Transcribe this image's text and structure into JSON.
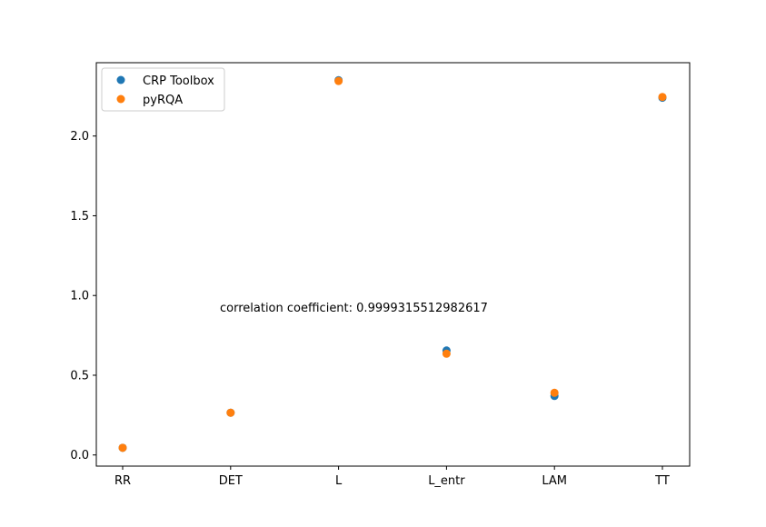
{
  "chart_data": {
    "type": "scatter",
    "title": "",
    "xlabel": "",
    "ylabel": "",
    "categories": [
      "RR",
      "DET",
      "L",
      "L_entr",
      "LAM",
      "TT"
    ],
    "ylim": [
      -0.07,
      2.46
    ],
    "yticks": [
      0.0,
      0.5,
      1.0,
      1.5,
      2.0
    ],
    "ytick_labels": [
      "0.0",
      "0.5",
      "1.0",
      "1.5",
      "2.0"
    ],
    "grid": false,
    "legend_position": "top-left",
    "series": [
      {
        "name": "CRP Toolbox",
        "color": "#1f77b4",
        "values": [
          0.045,
          0.265,
          2.35,
          0.655,
          0.37,
          2.24
        ]
      },
      {
        "name": "pyRQA",
        "color": "#ff7f0e",
        "values": [
          0.045,
          0.265,
          2.345,
          0.635,
          0.39,
          2.245
        ]
      }
    ],
    "annotation": {
      "text": "correlation coefficient: 0.9999315512982617"
    }
  }
}
